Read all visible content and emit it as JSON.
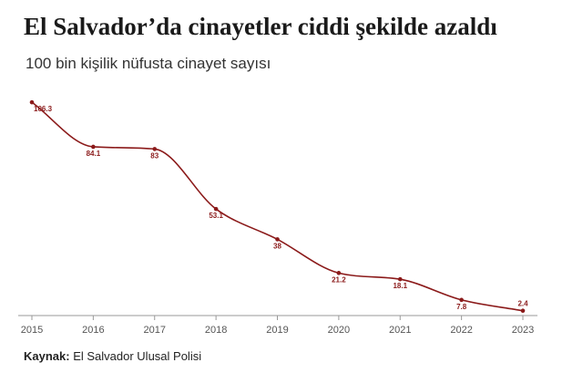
{
  "header": {
    "title": "El Salvador’da cinayetler ciddi şekilde azaldı",
    "subtitle": "100 bin kişilik nüfusta cinayet sayısı"
  },
  "footer": {
    "source_label": "Kaynak:",
    "source_text": "El Salvador Ulusal Polisi"
  },
  "colors": {
    "line": "#8b1a1a",
    "axis": "#999999"
  },
  "chart_data": {
    "type": "line",
    "title": "El Salvador’da cinayetler ciddi şekilde azaldı",
    "subtitle": "100 bin kişilik nüfusta cinayet sayısı",
    "x": [
      "2015",
      "2016",
      "2017",
      "2018",
      "2019",
      "2020",
      "2021",
      "2022",
      "2023"
    ],
    "series": [
      {
        "values": [
          106.3,
          84.1,
          83,
          53.1,
          38,
          21.2,
          18.1,
          7.8,
          2.4
        ]
      }
    ],
    "data_labels": [
      "106.3",
      "84.1",
      "83",
      "53.1",
      "38",
      "21.2",
      "18.1",
      "7.8",
      "2.4"
    ],
    "ylim": [
      0,
      110
    ],
    "grid": false,
    "legend": "none"
  }
}
